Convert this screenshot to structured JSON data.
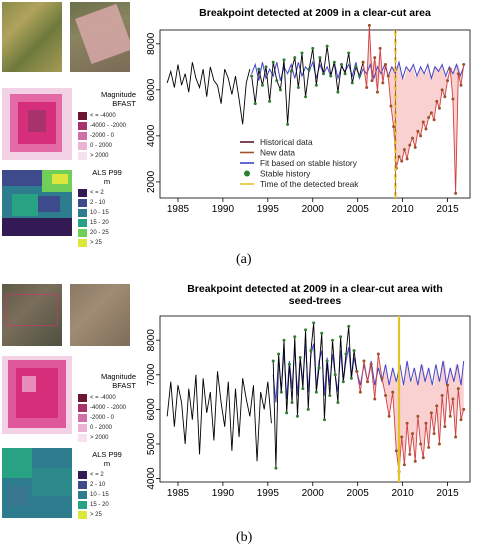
{
  "panels": [
    {
      "caption": "(a)",
      "legend_magnitude": {
        "title": [
          "Magnitude",
          "BFAST"
        ],
        "items": [
          {
            "label": "< = -4000",
            "color": "#6b1434"
          },
          {
            "label": "-4000 - -2000",
            "color": "#a8326b"
          },
          {
            "label": "-2000 - 0",
            "color": "#d070a8"
          },
          {
            "label": "0 - 2000",
            "color": "#eab3d4"
          },
          {
            "label": "> 2000",
            "color": "#f6e1ee"
          }
        ]
      },
      "legend_als": {
        "title": [
          "ALS P99",
          "m"
        ],
        "items": [
          {
            "label": "< = 2",
            "color": "#331a55"
          },
          {
            "label": "2 - 10",
            "color": "#3d4b8c"
          },
          {
            "label": "10 - 15",
            "color": "#2d7d8e"
          },
          {
            "label": "15 - 20",
            "color": "#27a383"
          },
          {
            "label": "20 - 25",
            "color": "#6fcf59"
          },
          {
            "label": "> 25",
            "color": "#dde63a"
          }
        ]
      }
    },
    {
      "caption": "(b)",
      "legend_magnitude": {
        "title": [
          "Magnitude",
          "BFAST"
        ],
        "items": [
          {
            "label": "< = -4000",
            "color": "#6b1434"
          },
          {
            "label": "-4000 - -2000",
            "color": "#a8326b"
          },
          {
            "label": "-2000 - 0",
            "color": "#d070a8"
          },
          {
            "label": "0 - 2000",
            "color": "#eab3d4"
          },
          {
            "label": "> 2000",
            "color": "#f6e1ee"
          }
        ]
      },
      "legend_als": {
        "title": [
          "ALS P99",
          "m"
        ],
        "items": [
          {
            "label": "< = 2",
            "color": "#331a55"
          },
          {
            "label": "2 - 10",
            "color": "#3d4b8c"
          },
          {
            "label": "10 - 15",
            "color": "#2d7d8e"
          },
          {
            "label": "15 - 20",
            "color": "#27a383"
          },
          {
            "label": "> 25",
            "color": "#dde63a"
          }
        ]
      }
    }
  ],
  "colors": {
    "historical": "#000000",
    "new": "#a0522d",
    "fit": "#4444cc",
    "stable": "#2e7d32",
    "break": "#e6c229",
    "new_band": "#f7c6c6"
  },
  "chart_data": [
    {
      "type": "line",
      "title": "Breakpoint detected at 2009 in a clear-cut area",
      "title_lines": [
        "Breakpoint detected at 2009 in a clear-cut area"
      ],
      "xlim": [
        1983,
        2017.5
      ],
      "ylim": [
        1300,
        8600
      ],
      "xticks": [
        1985,
        1990,
        1995,
        2000,
        2005,
        2010,
        2015
      ],
      "yticks": [
        2000,
        4000,
        6000,
        8000
      ],
      "break_year": 2009.2,
      "break_style": "dashed",
      "legend": {
        "placement": "center-right",
        "entries": [
          {
            "label": "Historical data",
            "kind": "line",
            "color": "#5a1530"
          },
          {
            "label": "New data",
            "kind": "line",
            "color": "#a0522d"
          },
          {
            "label": "Fit based on stable history",
            "kind": "line",
            "color": "#4444cc"
          },
          {
            "label": "Stable history",
            "kind": "dot",
            "color": "#2e7d32"
          },
          {
            "label": "Time of the detected break",
            "kind": "line",
            "color": "#e6c229"
          }
        ]
      },
      "historical": {
        "x": [
          1983.8,
          1984.2,
          1984.6,
          1985.0,
          1985.4,
          1985.8,
          1986.2,
          1986.6,
          1987.0,
          1987.4,
          1987.8,
          1988.2,
          1988.6,
          1989.0,
          1989.4,
          1989.8,
          1990.2,
          1990.6,
          1991.0,
          1991.4,
          1991.8,
          1992.2,
          1992.6,
          1993.0
        ],
        "y": [
          6300,
          6800,
          6100,
          7100,
          6200,
          6700,
          5900,
          7200,
          6500,
          6100,
          6900,
          5700,
          7000,
          6400,
          6200,
          5400,
          6900,
          6500,
          5800,
          6600,
          5600,
          4500,
          6300,
          6900
        ]
      },
      "stable": {
        "x": [
          1993.2,
          1993.6,
          1994.0,
          1994.4,
          1994.8,
          1995.2,
          1995.6,
          1996.0,
          1996.4,
          1996.8,
          1997.2,
          1997.6,
          1998.0,
          1998.4,
          1998.8,
          1999.2,
          1999.6,
          2000.0,
          2000.4,
          2000.8,
          2001.2,
          2001.6,
          2002.0,
          2002.4,
          2002.8,
          2003.2,
          2003.6,
          2004.0,
          2004.4,
          2004.8,
          2005.2,
          2005.6
        ],
        "y": [
          6600,
          5400,
          6900,
          6200,
          7000,
          5500,
          7200,
          6400,
          6000,
          7300,
          4500,
          6800,
          7400,
          6100,
          7600,
          5700,
          6900,
          7800,
          6200,
          7400,
          6700,
          7900,
          6600,
          7200,
          5900,
          7100,
          6700,
          7600,
          6300,
          7000,
          6600,
          7200
        ]
      },
      "fit": {
        "x": [
          1993.2,
          1993.6,
          1994.0,
          1994.4,
          1994.8,
          1995.2,
          1995.6,
          1996.0,
          1996.4,
          1996.8,
          1997.2,
          1997.6,
          1998.0,
          1998.4,
          1998.8,
          1999.2,
          1999.6,
          2000.0,
          2000.4,
          2000.8,
          2001.2,
          2001.6,
          2002.0,
          2002.4,
          2002.8,
          2003.2,
          2003.6,
          2004.0,
          2004.4,
          2004.8,
          2005.2,
          2005.6,
          2006.0,
          2006.4,
          2006.8,
          2007.2,
          2007.6,
          2008.0,
          2008.4,
          2008.8,
          2009.2,
          2009.6,
          2010.0,
          2010.4,
          2010.8,
          2011.2,
          2011.6,
          2012.0,
          2012.4,
          2012.8,
          2013.2,
          2013.6,
          2014.0,
          2014.4,
          2014.8,
          2015.2,
          2015.6,
          2016.0,
          2016.4,
          2016.8
        ],
        "y": [
          6700,
          7100,
          6400,
          7200,
          6500,
          6900,
          6600,
          7200,
          6400,
          7000,
          6700,
          7100,
          6500,
          7200,
          6600,
          7000,
          6800,
          7200,
          6500,
          7100,
          6700,
          7000,
          6600,
          7200,
          6500,
          7000,
          6800,
          7100,
          6600,
          7200,
          6500,
          6900,
          6700,
          7100,
          6500,
          7000,
          6700,
          7100,
          6600,
          7000,
          6700,
          7200,
          6500,
          7000,
          6800,
          7100,
          6600,
          7000,
          6700,
          7100,
          6500,
          7000,
          6800,
          7100,
          6600,
          7000,
          6700,
          7100,
          6600,
          7000
        ]
      },
      "new": {
        "x": [
          2005.6,
          2006.0,
          2006.3,
          2006.6,
          2006.9,
          2007.2,
          2007.5,
          2007.8,
          2008.1,
          2008.4,
          2008.7,
          2009.0,
          2009.3,
          2009.6,
          2009.9,
          2010.2,
          2010.5,
          2010.8,
          2011.1,
          2011.4,
          2011.7,
          2012.0,
          2012.3,
          2012.6,
          2012.9,
          2013.2,
          2013.5,
          2013.8,
          2014.1,
          2014.4,
          2014.7,
          2015.0,
          2015.3,
          2015.6,
          2015.9,
          2016.2,
          2016.5,
          2016.8
        ],
        "y": [
          7200,
          6100,
          8800,
          6400,
          7400,
          5900,
          7800,
          6300,
          7100,
          6600,
          5300,
          4400,
          2600,
          3100,
          2900,
          3400,
          3000,
          3600,
          3900,
          3500,
          4200,
          4000,
          4600,
          4300,
          4800,
          5000,
          4700,
          5500,
          5200,
          6000,
          5700,
          6400,
          6900,
          5600,
          1500,
          6700,
          6200,
          7100
        ]
      }
    },
    {
      "type": "line",
      "title": "Breakpoint detected at 2009 in a clear-cut area with seed-trees",
      "title_lines": [
        "Breakpoint detected at 2009 in a clear-cut area with",
        "seed-trees"
      ],
      "xlim": [
        1983,
        2017.5
      ],
      "ylim": [
        3900,
        8700
      ],
      "xticks": [
        1985,
        1990,
        1995,
        2000,
        2005,
        2010,
        2015
      ],
      "yticks": [
        4000,
        5000,
        6000,
        7000,
        8000
      ],
      "break_year": 2009.6,
      "break_style": "solid",
      "historical": {
        "x": [
          1983.8,
          1984.2,
          1984.6,
          1985.0,
          1985.4,
          1985.8,
          1986.2,
          1986.6,
          1987.0,
          1987.4,
          1987.8,
          1988.2,
          1988.6,
          1989.0,
          1989.4,
          1989.8,
          1990.2,
          1990.6,
          1991.0,
          1991.4,
          1991.8,
          1992.2,
          1992.6,
          1993.0,
          1993.4,
          1993.8,
          1994.2,
          1994.6,
          1995.0,
          1995.4
        ],
        "y": [
          5800,
          6800,
          5500,
          6700,
          6200,
          5000,
          6600,
          5700,
          7000,
          4700,
          6900,
          5900,
          6500,
          5100,
          7100,
          6200,
          5500,
          6800,
          4800,
          6600,
          5200,
          6900,
          6300,
          5800,
          6700,
          4500,
          6500,
          6000,
          6800,
          5600
        ]
      },
      "stable": {
        "x": [
          1995.6,
          1995.9,
          1996.2,
          1996.5,
          1996.8,
          1997.1,
          1997.4,
          1997.7,
          1998.0,
          1998.3,
          1998.6,
          1998.9,
          1999.2,
          1999.5,
          1999.8,
          2000.1,
          2000.4,
          2000.7,
          2001.0,
          2001.3,
          2001.6,
          2001.9,
          2002.2,
          2002.5,
          2002.8,
          2003.1,
          2003.4,
          2003.7,
          2004.0,
          2004.3,
          2004.6,
          2004.9
        ],
        "y": [
          7400,
          4300,
          7600,
          6500,
          8000,
          5900,
          7300,
          6200,
          8100,
          5800,
          7500,
          6600,
          8300,
          6000,
          7700,
          8500,
          6500,
          7200,
          8200,
          5700,
          7400,
          6400,
          8000,
          7000,
          6200,
          8100,
          6800,
          7600,
          8400,
          6900,
          7700,
          7100
        ]
      },
      "fit": {
        "x": [
          1995.6,
          1995.9,
          1996.2,
          1996.5,
          1996.8,
          1997.1,
          1997.4,
          1997.7,
          1998.0,
          1998.3,
          1998.6,
          1998.9,
          1999.2,
          1999.5,
          1999.8,
          2000.1,
          2000.4,
          2000.7,
          2001.0,
          2001.3,
          2001.6,
          2001.9,
          2002.2,
          2002.5,
          2002.8,
          2003.1,
          2003.4,
          2003.7,
          2004.0,
          2004.3,
          2004.6,
          2004.9,
          2005.3,
          2005.7,
          2006.1,
          2006.5,
          2006.9,
          2007.3,
          2007.7,
          2008.1,
          2008.5,
          2008.9,
          2009.3,
          2009.7,
          2010.1,
          2010.5,
          2010.9,
          2011.3,
          2011.7,
          2012.1,
          2012.5,
          2012.9,
          2013.3,
          2013.7,
          2014.1,
          2014.5,
          2014.9,
          2015.3,
          2015.7,
          2016.1,
          2016.5,
          2016.8
        ],
        "y": [
          7000,
          6200,
          7500,
          6500,
          7700,
          6300,
          7400,
          6600,
          7800,
          6400,
          7500,
          6800,
          7900,
          6500,
          7600,
          7900,
          6600,
          7400,
          7700,
          6400,
          7500,
          6700,
          7600,
          7000,
          6500,
          7700,
          6800,
          7400,
          7800,
          6900,
          7500,
          7100,
          6700,
          7300,
          6800,
          7400,
          6700,
          7200,
          6800,
          7300,
          6700,
          7200,
          6800,
          7300,
          6700,
          7400,
          6800,
          7200,
          6700,
          7300,
          6800,
          7200,
          6700,
          7300,
          6800,
          7400,
          6700,
          7200,
          6800,
          7300,
          6700,
          7400
        ]
      },
      "new": {
        "x": [
          2004.9,
          2005.3,
          2005.7,
          2006.1,
          2006.5,
          2006.9,
          2007.3,
          2007.7,
          2008.1,
          2008.5,
          2008.9,
          2009.3,
          2009.6,
          2009.9,
          2010.2,
          2010.5,
          2010.8,
          2011.1,
          2011.4,
          2011.7,
          2012.0,
          2012.3,
          2012.6,
          2012.9,
          2013.2,
          2013.5,
          2013.8,
          2014.1,
          2014.4,
          2014.7,
          2015.0,
          2015.3,
          2015.6,
          2015.9,
          2016.2,
          2016.5,
          2016.8
        ],
        "y": [
          7100,
          6500,
          7400,
          6800,
          7300,
          6300,
          7600,
          6900,
          6400,
          5800,
          6500,
          4800,
          4200,
          5200,
          4400,
          5600,
          4700,
          5300,
          4500,
          5800,
          5000,
          4600,
          5600,
          4900,
          5900,
          5300,
          6100,
          5000,
          6400,
          5500,
          6700,
          5800,
          6300,
          5200,
          6600,
          5700,
          6000
        ]
      }
    }
  ]
}
